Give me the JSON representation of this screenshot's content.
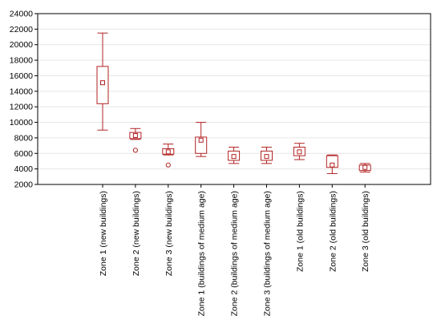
{
  "chart_data": {
    "type": "box",
    "title": "",
    "xlabel": "",
    "ylabel": "",
    "ylim": [
      2000,
      24000
    ],
    "yticks": [
      2000,
      4000,
      6000,
      8000,
      10000,
      12000,
      14000,
      16000,
      18000,
      20000,
      22000,
      24000
    ],
    "grid": true,
    "color": "#b22222",
    "categories": [
      "Zone 1 (new buildings)",
      "Zone 2 (new buildings)",
      "Zone 3 (new buildings)",
      "Zone 1 (buildings of medium age)",
      "Zone 2 (buildings of medium age)",
      "Zone 3 (buildings of medium age)",
      "Zone 1 (old buildings)",
      "Zone 2 (old buildings)",
      "Zone 3 (old buildings)"
    ],
    "boxes": [
      {
        "min": 9000,
        "q1": 12400,
        "median": 15100,
        "q3": 17200,
        "max": 21500,
        "outliers": []
      },
      {
        "min": 7800,
        "q1": 7900,
        "median": 8300,
        "q3": 8700,
        "max": 9200,
        "outliers": [
          6400
        ]
      },
      {
        "min": 5800,
        "q1": 5900,
        "median": 6200,
        "q3": 6600,
        "max": 7200,
        "outliers": [
          4500
        ]
      },
      {
        "min": 5600,
        "q1": 6000,
        "median": 7700,
        "q3": 8100,
        "max": 10000,
        "outliers": []
      },
      {
        "min": 4700,
        "q1": 5100,
        "median": 5600,
        "q3": 6300,
        "max": 6800,
        "outliers": []
      },
      {
        "min": 4700,
        "q1": 5100,
        "median": 5600,
        "q3": 6300,
        "max": 6800,
        "outliers": []
      },
      {
        "min": 5200,
        "q1": 5700,
        "median": 6200,
        "q3": 6800,
        "max": 7300,
        "outliers": []
      },
      {
        "min": 3400,
        "q1": 4200,
        "median": 4500,
        "q3": 5700,
        "max": 5800,
        "outliers": []
      },
      {
        "min": 3600,
        "q1": 3800,
        "median": 4200,
        "q3": 4500,
        "max": 4700,
        "outliers": []
      }
    ]
  }
}
